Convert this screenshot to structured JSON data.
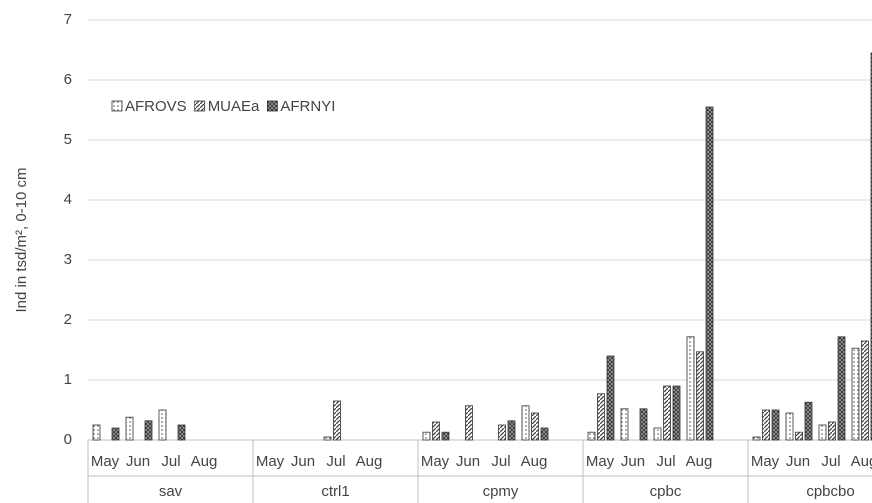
{
  "chart_data": {
    "type": "bar",
    "y_label": "Ind in tsd/m², 0-10 cm",
    "groups": [
      "sav",
      "ctrl1",
      "cpmy",
      "cpbc",
      "cpbcbo"
    ],
    "categories": [
      "May",
      "Jun",
      "Jul",
      "Aug",
      "May",
      "Jun",
      "Jul",
      "Aug",
      "May",
      "Jun",
      "Jul",
      "Aug",
      "May",
      "Jun",
      "Jul",
      "Aug",
      "May",
      "Jun",
      "Jul",
      "Aug"
    ],
    "series": [
      {
        "name": "AFROVS",
        "color": "#ffffff",
        "values": [
          0.25,
          0.38,
          0.5,
          0,
          0,
          0,
          0.05,
          0,
          0.13,
          0,
          0,
          0.57,
          0.13,
          0.52,
          0.2,
          1.72,
          0.05,
          0.45,
          0.25,
          1.53
        ]
      },
      {
        "name": "MUAEa",
        "color": "#bfbfbf",
        "values": [
          0,
          0,
          0,
          0,
          0,
          0,
          0.65,
          0,
          0.3,
          0.57,
          0.25,
          0.45,
          0.77,
          0,
          0.9,
          1.47,
          0.5,
          0.13,
          0.3,
          1.65
        ]
      },
      {
        "name": "AFRNYI",
        "color": "#404040",
        "values": [
          0.2,
          0.32,
          0.25,
          0,
          0,
          0,
          0,
          0,
          0.13,
          0,
          0.32,
          0.2,
          1.4,
          0.52,
          0.9,
          5.55,
          0.5,
          0.63,
          1.72,
          6.45
        ]
      }
    ],
    "ylim": [
      0,
      7
    ],
    "yticks": [
      0,
      1,
      2,
      3,
      4,
      5,
      6,
      7
    ],
    "grid": true,
    "legend": "upper left"
  }
}
